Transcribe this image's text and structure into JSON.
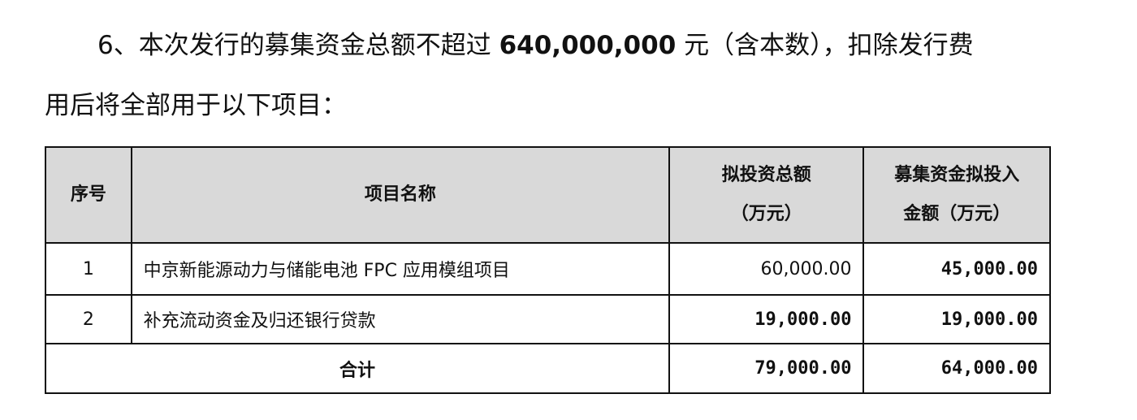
{
  "paragraph": {
    "prefix": "6、本次发行的募集资金总额不超过 ",
    "amount": "640,000,000",
    "suffix": " 元（含本数），扣除发行费",
    "line2": "用后将全部用于以下项目："
  },
  "table": {
    "headers": {
      "no": "序号",
      "name": "项目名称",
      "total": "拟投资总额",
      "total_unit": "（万元）",
      "raised": "募集资金拟投入",
      "raised_unit": "金额（万元）"
    },
    "rows": [
      {
        "no": "1",
        "name": "中京新能源动力与储能电池 FPC 应用模组项目",
        "total": "60,000.00",
        "raised": "45,000.00"
      },
      {
        "no": "2",
        "name": "补充流动资金及归还银行贷款",
        "total": "19,000.00",
        "raised": "19,000.00"
      }
    ],
    "sum": {
      "label": "合计",
      "total": "79,000.00",
      "raised": "64,000.00"
    }
  }
}
